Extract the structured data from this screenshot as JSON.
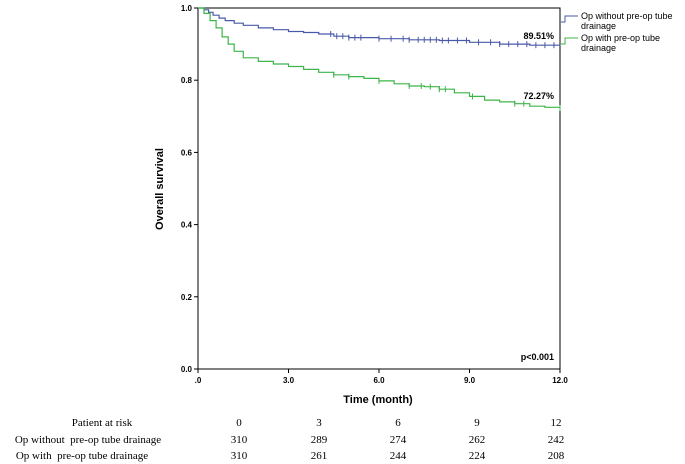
{
  "chart_data": {
    "type": "line",
    "subtype": "kaplan-meier",
    "xlabel": "Time (month)",
    "ylabel": "Overall survival",
    "xlim": [
      0,
      12
    ],
    "ylim": [
      0,
      1
    ],
    "x_ticks": [
      0,
      3,
      6,
      9,
      12
    ],
    "x_tick_labels": [
      ".0",
      "3.0",
      "6.0",
      "9.0",
      "12.0"
    ],
    "y_ticks": [
      0,
      0.2,
      0.4,
      0.6,
      0.8,
      1.0
    ],
    "y_tick_labels": [
      "0.0",
      "0.2",
      "0.4",
      "0.6",
      "0.8",
      "1.0"
    ],
    "grid": false,
    "legend_position": "top-right outside",
    "p_value": "p<0.001",
    "series": [
      {
        "name": "Op without pre-op tube drainage",
        "legend": [
          "Op without pre-op tube",
          "drainage"
        ],
        "color": "#4a5aa8",
        "final_label": "89.51%",
        "points": [
          [
            0,
            1.0
          ],
          [
            0.2,
            0.995
          ],
          [
            0.35,
            0.988
          ],
          [
            0.5,
            0.98
          ],
          [
            0.7,
            0.972
          ],
          [
            0.9,
            0.965
          ],
          [
            1.2,
            0.958
          ],
          [
            1.5,
            0.952
          ],
          [
            2.0,
            0.945
          ],
          [
            2.5,
            0.94
          ],
          [
            3.0,
            0.935
          ],
          [
            3.5,
            0.932
          ],
          [
            4.0,
            0.928
          ],
          [
            4.5,
            0.922
          ],
          [
            5.0,
            0.918
          ],
          [
            6.0,
            0.915
          ],
          [
            7.0,
            0.912
          ],
          [
            8.0,
            0.91
          ],
          [
            9.0,
            0.905
          ],
          [
            10.0,
            0.9
          ],
          [
            11.0,
            0.897
          ],
          [
            12.0,
            0.895
          ]
        ],
        "censor_times": [
          4.4,
          4.6,
          4.8,
          5.0,
          5.2,
          5.4,
          6.0,
          6.4,
          6.8,
          7.0,
          7.3,
          7.5,
          7.7,
          7.9,
          8.1,
          8.3,
          8.6,
          8.9,
          9.3,
          9.7,
          10.0,
          10.3,
          10.6,
          10.9,
          11.2,
          11.5,
          11.8
        ]
      },
      {
        "name": "Op with pre-op tube drainage",
        "legend": [
          "Op with pre-op tube",
          "drainage"
        ],
        "color": "#3cb54a",
        "final_label": "72.27%",
        "points": [
          [
            0,
            1.0
          ],
          [
            0.2,
            0.985
          ],
          [
            0.4,
            0.965
          ],
          [
            0.6,
            0.945
          ],
          [
            0.8,
            0.92
          ],
          [
            1.0,
            0.9
          ],
          [
            1.2,
            0.88
          ],
          [
            1.5,
            0.862
          ],
          [
            2.0,
            0.852
          ],
          [
            2.5,
            0.845
          ],
          [
            3.0,
            0.838
          ],
          [
            3.5,
            0.83
          ],
          [
            4.0,
            0.822
          ],
          [
            4.5,
            0.815
          ],
          [
            5.0,
            0.81
          ],
          [
            5.5,
            0.805
          ],
          [
            6.0,
            0.798
          ],
          [
            6.5,
            0.79
          ],
          [
            7.0,
            0.784
          ],
          [
            7.5,
            0.782
          ],
          [
            8.0,
            0.775
          ],
          [
            8.5,
            0.765
          ],
          [
            9.0,
            0.755
          ],
          [
            9.5,
            0.745
          ],
          [
            10.0,
            0.74
          ],
          [
            10.5,
            0.735
          ],
          [
            11.0,
            0.728
          ],
          [
            11.5,
            0.725
          ],
          [
            12.0,
            0.723
          ]
        ],
        "censor_times": [
          4.5,
          5.0,
          6.0,
          7.0,
          7.4,
          7.7,
          8.0,
          8.2,
          9.1,
          10.5,
          10.8,
          12.0
        ]
      }
    ],
    "risk_table": {
      "header_label": "Patient at risk",
      "times": [
        "0",
        "3",
        "6",
        "9",
        "12"
      ],
      "rows": [
        {
          "label": "Op without  pre-op tube drainage",
          "values": [
            "310",
            "289",
            "274",
            "262",
            "242"
          ]
        },
        {
          "label": "Op with  pre-op tube drainage",
          "values": [
            "310",
            "261",
            "244",
            "224",
            "208"
          ]
        }
      ]
    }
  }
}
